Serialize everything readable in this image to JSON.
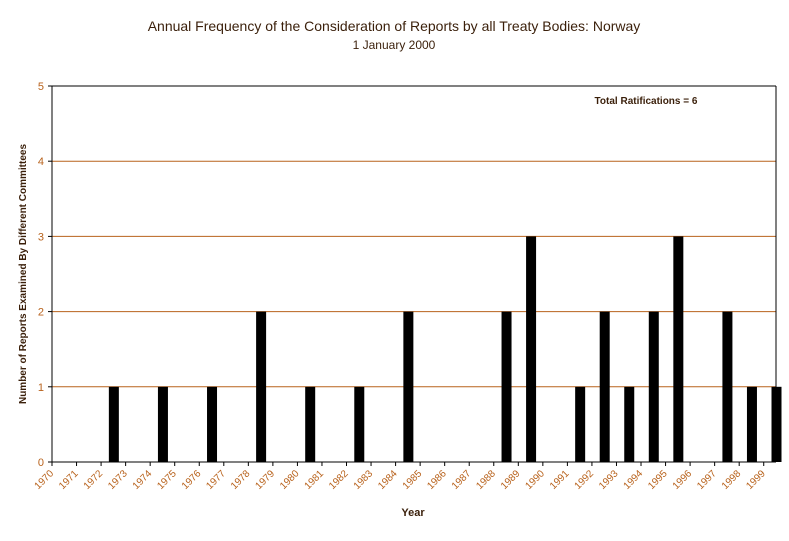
{
  "chart_data": {
    "type": "bar",
    "title": "Annual Frequency of the Consideration of Reports by all Treaty Bodies: Norway",
    "subtitle": "1 January 2000",
    "xlabel": "Year",
    "ylabel": "Number of Reports Examined By Different Committees",
    "annotation": "Total Ratifications = 6",
    "ylim": [
      0,
      5
    ],
    "yticks": [
      "0",
      "1",
      "2",
      "3",
      "4",
      "5"
    ],
    "grid": true,
    "categories": [
      "1970",
      "1971",
      "1972",
      "1973",
      "1974",
      "1975",
      "1976",
      "1977",
      "1978",
      "1979",
      "1980",
      "1981",
      "1982",
      "1983",
      "1984",
      "1985",
      "1986",
      "1987",
      "1988",
      "1989",
      "1990",
      "1991",
      "1992",
      "1993",
      "1994",
      "1995",
      "1996",
      "1997",
      "1998",
      "1999"
    ],
    "values": [
      0,
      0,
      1,
      0,
      1,
      0,
      1,
      0,
      2,
      0,
      1,
      0,
      1,
      0,
      2,
      0,
      0,
      0,
      2,
      3,
      0,
      1,
      2,
      1,
      2,
      3,
      0,
      2,
      1,
      1
    ],
    "colors": {
      "bar": "#000000",
      "gridline": "#b8621c",
      "tick_label": "#b8621c",
      "text": "#3a1f0a"
    }
  }
}
